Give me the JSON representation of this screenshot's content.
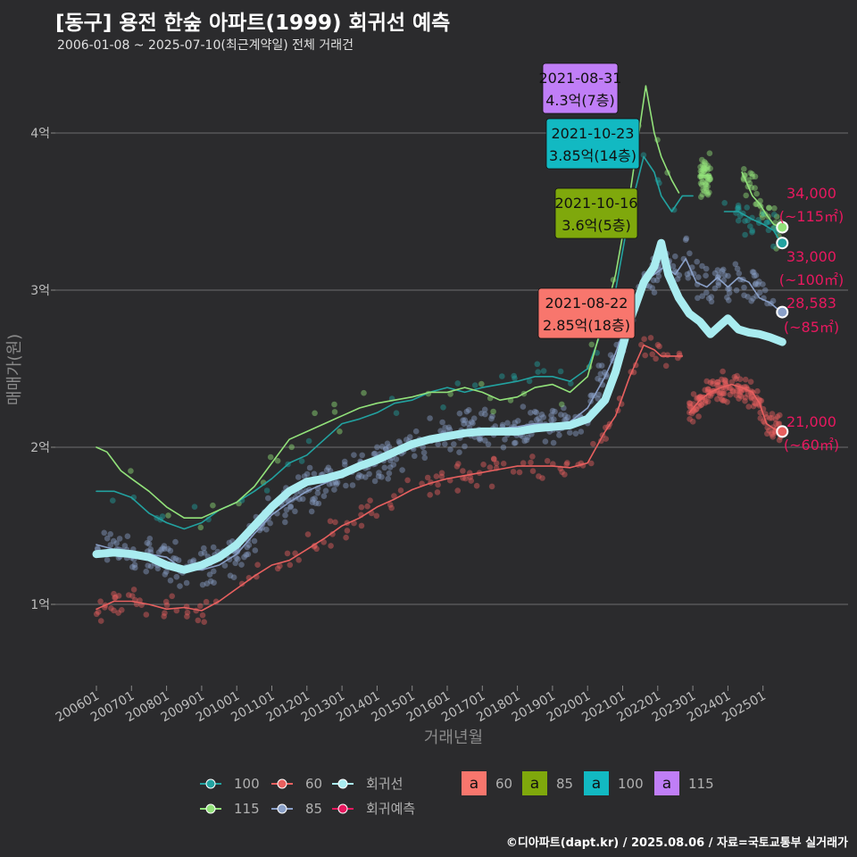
{
  "title": "[동구] 용전 한숲 아파트(1999) 회귀선 예측",
  "subtitle": "2006-01-08 ~ 2025-07-10(최근계약일) 전체 거래건",
  "caption": "©디아파트(dapt.kr) / 2025.08.06 / 자료=국토교통부 실거래가",
  "chart_data": {
    "type": "line",
    "xlabel": "거래년월",
    "ylabel": "매매가(원)",
    "x_ticks": [
      "200601",
      "200701",
      "200801",
      "200901",
      "201001",
      "201101",
      "201201",
      "201301",
      "201401",
      "201501",
      "201601",
      "201701",
      "201801",
      "201901",
      "202001",
      "202101",
      "202201",
      "202301",
      "202401",
      "202501"
    ],
    "y_ticks": [
      {
        "value": 1,
        "label": "1억"
      },
      {
        "value": 2,
        "label": "2억"
      },
      {
        "value": 3,
        "label": "3억"
      },
      {
        "value": 4,
        "label": "4억"
      }
    ],
    "ylim": [
      0.5,
      4.55
    ],
    "xlim": [
      2005.6,
      2025.95
    ],
    "grid": true,
    "legend_position": "bottom",
    "series": [
      {
        "name": "60",
        "color": "#e8605f",
        "points": [
          [
            2006.0,
            0.97
          ],
          [
            2006.5,
            1.02
          ],
          [
            2007.0,
            1.02
          ],
          [
            2007.5,
            1.0
          ],
          [
            2008.0,
            0.97
          ],
          [
            2008.5,
            0.98
          ],
          [
            2009.0,
            0.96
          ],
          [
            2009.5,
            1.02
          ],
          [
            2010.0,
            1.1
          ],
          [
            2010.5,
            1.18
          ],
          [
            2011.0,
            1.25
          ],
          [
            2011.5,
            1.28
          ],
          [
            2012.0,
            1.35
          ],
          [
            2012.5,
            1.42
          ],
          [
            2013.0,
            1.5
          ],
          [
            2013.5,
            1.55
          ],
          [
            2014.0,
            1.62
          ],
          [
            2014.5,
            1.67
          ],
          [
            2015.0,
            1.73
          ],
          [
            2015.5,
            1.77
          ],
          [
            2016.0,
            1.8
          ],
          [
            2016.5,
            1.82
          ],
          [
            2017.0,
            1.84
          ],
          [
            2017.5,
            1.86
          ],
          [
            2018.0,
            1.88
          ],
          [
            2018.5,
            1.88
          ],
          [
            2019.0,
            1.88
          ],
          [
            2019.5,
            1.87
          ],
          [
            2020.0,
            1.9
          ],
          [
            2020.5,
            2.1
          ],
          [
            2020.8,
            2.2
          ],
          [
            2021.2,
            2.45
          ],
          [
            2021.6,
            2.65
          ],
          [
            2021.9,
            2.62
          ],
          [
            2022.1,
            2.58
          ],
          [
            2022.5,
            2.58
          ],
          [
            2022.7,
            2.58
          ]
        ]
      },
      {
        "name": "60-recent",
        "color": "#e8605f",
        "points": [
          [
            2022.9,
            2.22
          ],
          [
            2023.2,
            2.3
          ],
          [
            2023.5,
            2.35
          ],
          [
            2023.8,
            2.38
          ],
          [
            2024.1,
            2.4
          ],
          [
            2024.4,
            2.38
          ],
          [
            2024.7,
            2.35
          ],
          [
            2024.9,
            2.28
          ],
          [
            2025.1,
            2.15
          ],
          [
            2025.3,
            2.12
          ],
          [
            2025.52,
            2.1
          ]
        ]
      },
      {
        "name": "85",
        "color": "#8aa0c8",
        "points": [
          [
            2006.0,
            1.38
          ],
          [
            2006.5,
            1.35
          ],
          [
            2007.0,
            1.33
          ],
          [
            2007.5,
            1.32
          ],
          [
            2008.0,
            1.3
          ],
          [
            2008.5,
            1.22
          ],
          [
            2009.0,
            1.22
          ],
          [
            2009.5,
            1.25
          ],
          [
            2010.0,
            1.32
          ],
          [
            2010.5,
            1.45
          ],
          [
            2011.0,
            1.57
          ],
          [
            2011.5,
            1.65
          ],
          [
            2012.0,
            1.72
          ],
          [
            2012.5,
            1.77
          ],
          [
            2013.0,
            1.82
          ],
          [
            2013.5,
            1.86
          ],
          [
            2014.0,
            1.9
          ],
          [
            2014.5,
            1.95
          ],
          [
            2015.0,
            2.0
          ],
          [
            2015.5,
            2.05
          ],
          [
            2016.0,
            2.08
          ],
          [
            2016.5,
            2.1
          ],
          [
            2017.0,
            2.12
          ],
          [
            2017.5,
            2.12
          ],
          [
            2018.0,
            2.13
          ],
          [
            2018.5,
            2.15
          ],
          [
            2019.0,
            2.15
          ],
          [
            2019.5,
            2.16
          ],
          [
            2020.0,
            2.25
          ],
          [
            2020.5,
            2.45
          ],
          [
            2020.8,
            2.6
          ],
          [
            2021.2,
            2.85
          ],
          [
            2021.6,
            3.05
          ],
          [
            2021.9,
            3.1
          ],
          [
            2022.2,
            3.15
          ],
          [
            2022.5,
            3.1
          ],
          [
            2022.8,
            3.2
          ],
          [
            2023.1,
            3.05
          ],
          [
            2023.4,
            3.02
          ],
          [
            2023.7,
            3.08
          ],
          [
            2024.0,
            3.02
          ],
          [
            2024.3,
            3.08
          ],
          [
            2024.6,
            3.05
          ],
          [
            2024.9,
            2.95
          ],
          [
            2025.2,
            2.92
          ],
          [
            2025.52,
            2.86
          ]
        ]
      },
      {
        "name": "100",
        "color": "#22a2a0",
        "points": [
          [
            2006.0,
            1.72
          ],
          [
            2006.5,
            1.72
          ],
          [
            2007.0,
            1.68
          ],
          [
            2007.5,
            1.58
          ],
          [
            2008.0,
            1.52
          ],
          [
            2008.5,
            1.48
          ],
          [
            2009.0,
            1.52
          ],
          [
            2009.5,
            1.6
          ],
          [
            2010.0,
            1.65
          ],
          [
            2010.5,
            1.72
          ],
          [
            2011.0,
            1.8
          ],
          [
            2011.5,
            1.9
          ],
          [
            2012.0,
            1.95
          ],
          [
            2012.5,
            2.05
          ],
          [
            2013.0,
            2.15
          ],
          [
            2013.5,
            2.18
          ],
          [
            2014.0,
            2.22
          ],
          [
            2014.5,
            2.28
          ],
          [
            2015.0,
            2.3
          ],
          [
            2015.5,
            2.35
          ],
          [
            2016.0,
            2.38
          ],
          [
            2016.5,
            2.35
          ],
          [
            2017.0,
            2.38
          ],
          [
            2017.5,
            2.4
          ],
          [
            2018.0,
            2.42
          ],
          [
            2018.5,
            2.45
          ],
          [
            2019.0,
            2.45
          ],
          [
            2019.5,
            2.42
          ],
          [
            2020.0,
            2.5
          ],
          [
            2020.5,
            2.8
          ],
          [
            2020.8,
            3.0
          ],
          [
            2021.2,
            3.5
          ],
          [
            2021.6,
            3.85
          ],
          [
            2021.9,
            3.75
          ],
          [
            2022.1,
            3.6
          ],
          [
            2022.4,
            3.5
          ],
          [
            2022.7,
            3.6
          ],
          [
            2023.0,
            3.6
          ]
        ]
      },
      {
        "name": "100-recent",
        "color": "#22a2a0",
        "points": [
          [
            2023.9,
            3.5
          ],
          [
            2024.3,
            3.5
          ],
          [
            2024.7,
            3.45
          ],
          [
            2025.0,
            3.42
          ],
          [
            2025.3,
            3.38
          ],
          [
            2025.52,
            3.3
          ]
        ]
      },
      {
        "name": "115",
        "color": "#92e27a",
        "points": [
          [
            2006.0,
            2.0
          ],
          [
            2006.3,
            1.97
          ],
          [
            2006.7,
            1.85
          ],
          [
            2007.0,
            1.8
          ],
          [
            2007.5,
            1.72
          ],
          [
            2008.0,
            1.62
          ],
          [
            2008.5,
            1.55
          ],
          [
            2009.0,
            1.55
          ],
          [
            2009.5,
            1.6
          ],
          [
            2010.0,
            1.65
          ],
          [
            2010.5,
            1.75
          ],
          [
            2011.0,
            1.9
          ],
          [
            2011.5,
            2.05
          ],
          [
            2012.0,
            2.1
          ],
          [
            2012.5,
            2.15
          ],
          [
            2013.0,
            2.2
          ],
          [
            2013.5,
            2.25
          ],
          [
            2014.0,
            2.28
          ],
          [
            2014.5,
            2.3
          ],
          [
            2015.0,
            2.32
          ],
          [
            2015.5,
            2.35
          ],
          [
            2016.0,
            2.35
          ],
          [
            2016.5,
            2.38
          ],
          [
            2017.0,
            2.35
          ],
          [
            2017.5,
            2.3
          ],
          [
            2018.0,
            2.32
          ],
          [
            2018.5,
            2.38
          ],
          [
            2019.0,
            2.4
          ],
          [
            2019.5,
            2.35
          ],
          [
            2020.0,
            2.45
          ],
          [
            2020.5,
            2.85
          ],
          [
            2020.8,
            3.1
          ],
          [
            2021.2,
            3.6
          ],
          [
            2021.66,
            4.3
          ],
          [
            2021.9,
            4.0
          ],
          [
            2022.1,
            3.85
          ],
          [
            2022.4,
            3.7
          ],
          [
            2022.6,
            3.62
          ]
        ]
      },
      {
        "name": "115-recent",
        "color": "#92e27a",
        "points": [
          [
            2023.2,
            3.73
          ],
          [
            2023.5,
            3.73
          ]
        ]
      },
      {
        "name": "115-recent2",
        "color": "#92e27a",
        "points": [
          [
            2024.4,
            3.75
          ],
          [
            2024.7,
            3.6
          ],
          [
            2024.9,
            3.55
          ],
          [
            2025.1,
            3.48
          ],
          [
            2025.3,
            3.42
          ],
          [
            2025.52,
            3.4
          ]
        ]
      },
      {
        "name": "회귀선",
        "color": "#a9ecf0",
        "points": [
          [
            2006.0,
            1.32
          ],
          [
            2006.5,
            1.33
          ],
          [
            2007.0,
            1.32
          ],
          [
            2007.5,
            1.3
          ],
          [
            2008.0,
            1.25
          ],
          [
            2008.5,
            1.22
          ],
          [
            2009.0,
            1.25
          ],
          [
            2009.5,
            1.3
          ],
          [
            2010.0,
            1.38
          ],
          [
            2010.5,
            1.5
          ],
          [
            2011.0,
            1.62
          ],
          [
            2011.5,
            1.72
          ],
          [
            2012.0,
            1.78
          ],
          [
            2012.5,
            1.8
          ],
          [
            2013.0,
            1.83
          ],
          [
            2013.5,
            1.88
          ],
          [
            2014.0,
            1.92
          ],
          [
            2014.5,
            1.97
          ],
          [
            2015.0,
            2.02
          ],
          [
            2015.5,
            2.05
          ],
          [
            2016.0,
            2.07
          ],
          [
            2016.5,
            2.09
          ],
          [
            2017.0,
            2.1
          ],
          [
            2017.5,
            2.1
          ],
          [
            2018.0,
            2.1
          ],
          [
            2018.5,
            2.12
          ],
          [
            2019.0,
            2.13
          ],
          [
            2019.5,
            2.14
          ],
          [
            2020.0,
            2.18
          ],
          [
            2020.5,
            2.3
          ],
          [
            2020.8,
            2.48
          ],
          [
            2021.2,
            2.8
          ],
          [
            2021.6,
            3.05
          ],
          [
            2021.9,
            3.15
          ],
          [
            2022.1,
            3.3
          ],
          [
            2022.3,
            3.1
          ],
          [
            2022.6,
            2.95
          ],
          [
            2022.9,
            2.85
          ],
          [
            2023.2,
            2.8
          ],
          [
            2023.5,
            2.72
          ],
          [
            2023.8,
            2.78
          ],
          [
            2024.0,
            2.82
          ],
          [
            2024.3,
            2.75
          ],
          [
            2024.6,
            2.73
          ],
          [
            2024.9,
            2.72
          ],
          [
            2025.2,
            2.7
          ],
          [
            2025.55,
            2.67
          ]
        ]
      }
    ],
    "highlights": [
      {
        "date": "2021-08-31",
        "price": "4.3억(7층)",
        "x": 2021.66,
        "y": 4.3,
        "box_color": "#c07ef7"
      },
      {
        "date": "2021-10-23",
        "price": "3.85억(14층)",
        "x": 2021.81,
        "y": 3.85,
        "box_color": "#12b9c2"
      },
      {
        "date": "2021-10-16",
        "price": "3.6억(5층)",
        "x": 2021.79,
        "y": 3.6,
        "box_color": "#7fa80c"
      },
      {
        "date": "2021-08-22",
        "price": "2.85억(18층)",
        "x": 2021.64,
        "y": 2.85,
        "box_color": "#f8766d"
      }
    ],
    "predictions": [
      {
        "value": "34,000",
        "area": "(~115㎡)",
        "y": 3.4,
        "color": "#92e27a"
      },
      {
        "value": "33,000",
        "area": "(~100㎡)",
        "y": 3.3,
        "color": "#22a2a0"
      },
      {
        "value": "28,583",
        "area": "(~85㎡)",
        "y": 2.86,
        "color": "#8aa0c8"
      },
      {
        "value": "21,000",
        "area": "(~60㎡)",
        "y": 2.1,
        "color": "#e8605f"
      }
    ],
    "legend": {
      "series_items": [
        {
          "label": "100",
          "color": "#22a2a0"
        },
        {
          "label": "60",
          "color": "#e8605f"
        },
        {
          "label": "회귀선",
          "color": "#a9ecf0"
        },
        {
          "label": "115",
          "color": "#92e27a"
        },
        {
          "label": "85",
          "color": "#8aa0c8"
        },
        {
          "label": "회귀예측",
          "color": "#e8185f"
        }
      ],
      "box_items": [
        {
          "label": "60",
          "color": "#f8766d",
          "glyph": "a"
        },
        {
          "label": "85",
          "color": "#7fa80c",
          "glyph": "a"
        },
        {
          "label": "100",
          "color": "#12b9c2",
          "glyph": "a"
        },
        {
          "label": "115",
          "color": "#c07ef7",
          "glyph": "a"
        }
      ]
    }
  }
}
